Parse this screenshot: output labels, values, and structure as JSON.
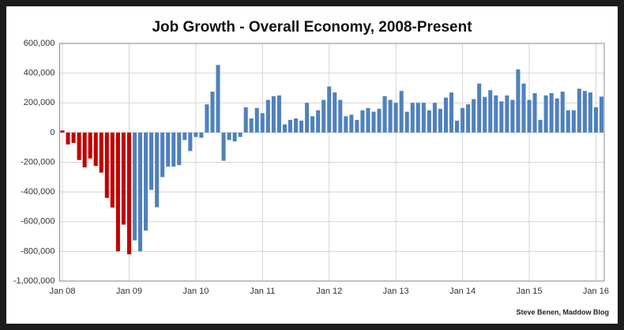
{
  "chart_data": {
    "type": "bar",
    "title": "Job Growth - Overall Economy, 2008-Present",
    "annotation": "Steve Benen, Maddow Blog",
    "categories": [
      "Jan 08",
      null,
      null,
      null,
      null,
      null,
      null,
      null,
      null,
      null,
      null,
      null,
      "Jan 09",
      null,
      null,
      null,
      null,
      null,
      null,
      null,
      null,
      null,
      null,
      null,
      "Jan 10",
      null,
      null,
      null,
      null,
      null,
      null,
      null,
      null,
      null,
      null,
      null,
      "Jan 11",
      null,
      null,
      null,
      null,
      null,
      null,
      null,
      null,
      null,
      null,
      null,
      "Jan 12",
      null,
      null,
      null,
      null,
      null,
      null,
      null,
      null,
      null,
      null,
      null,
      "Jan 13",
      null,
      null,
      null,
      null,
      null,
      null,
      null,
      null,
      null,
      null,
      null,
      "Jan 14",
      null,
      null,
      null,
      null,
      null,
      null,
      null,
      null,
      null,
      null,
      null,
      "Jan 15",
      null,
      null,
      null,
      null,
      null,
      null,
      null,
      null,
      null,
      null,
      null,
      "Jan 16",
      null
    ],
    "values": [
      14000,
      -80000,
      -70000,
      -185000,
      -235000,
      -175000,
      -225000,
      -270000,
      -440000,
      -505000,
      -800000,
      -620000,
      -820000,
      -726000,
      -800000,
      -660000,
      -386000,
      -503000,
      -300000,
      -230000,
      -230000,
      -220000,
      -50000,
      -125000,
      -30000,
      -35000,
      190000,
      275000,
      455000,
      -190000,
      -50000,
      -60000,
      -30000,
      170000,
      95000,
      165000,
      130000,
      220000,
      245000,
      250000,
      55000,
      85000,
      95000,
      80000,
      200000,
      110000,
      150000,
      220000,
      310000,
      270000,
      220000,
      110000,
      120000,
      85000,
      150000,
      165000,
      140000,
      160000,
      245000,
      220000,
      200000,
      280000,
      140000,
      200000,
      200000,
      200000,
      150000,
      200000,
      160000,
      235000,
      270000,
      80000,
      165000,
      190000,
      225000,
      330000,
      240000,
      285000,
      250000,
      210000,
      250000,
      220000,
      425000,
      330000,
      220000,
      265000,
      85000,
      250000,
      265000,
      230000,
      275000,
      150000,
      150000,
      295000,
      280000,
      270000,
      170000,
      242000
    ],
    "colors": [
      "#c00000",
      "#c00000",
      "#c00000",
      "#c00000",
      "#c00000",
      "#c00000",
      "#c00000",
      "#c00000",
      "#c00000",
      "#c00000",
      "#c00000",
      "#c00000",
      "#c00000",
      "#4f81bd",
      "#4f81bd",
      "#4f81bd",
      "#4f81bd",
      "#4f81bd",
      "#4f81bd",
      "#4f81bd",
      "#4f81bd",
      "#4f81bd",
      "#4f81bd",
      "#4f81bd",
      "#4f81bd",
      "#4f81bd",
      "#4f81bd",
      "#4f81bd",
      "#4f81bd",
      "#4f81bd",
      "#4f81bd",
      "#4f81bd",
      "#4f81bd",
      "#4f81bd",
      "#4f81bd",
      "#4f81bd",
      "#4f81bd",
      "#4f81bd",
      "#4f81bd",
      "#4f81bd",
      "#4f81bd",
      "#4f81bd",
      "#4f81bd",
      "#4f81bd",
      "#4f81bd",
      "#4f81bd",
      "#4f81bd",
      "#4f81bd",
      "#4f81bd",
      "#4f81bd",
      "#4f81bd",
      "#4f81bd",
      "#4f81bd",
      "#4f81bd",
      "#4f81bd",
      "#4f81bd",
      "#4f81bd",
      "#4f81bd",
      "#4f81bd",
      "#4f81bd",
      "#4f81bd",
      "#4f81bd",
      "#4f81bd",
      "#4f81bd",
      "#4f81bd",
      "#4f81bd",
      "#4f81bd",
      "#4f81bd",
      "#4f81bd",
      "#4f81bd",
      "#4f81bd",
      "#4f81bd",
      "#4f81bd",
      "#4f81bd",
      "#4f81bd",
      "#4f81bd",
      "#4f81bd",
      "#4f81bd",
      "#4f81bd",
      "#4f81bd",
      "#4f81bd",
      "#4f81bd",
      "#4f81bd",
      "#4f81bd",
      "#4f81bd",
      "#4f81bd",
      "#4f81bd",
      "#4f81bd",
      "#4f81bd",
      "#4f81bd",
      "#4f81bd",
      "#4f81bd",
      "#4f81bd",
      "#4f81bd",
      "#4f81bd",
      "#4f81bd",
      "#4f81bd",
      "#4f81bd"
    ],
    "ylim": [
      -1000000,
      600000
    ],
    "yticks": [
      {
        "value": -1000000,
        "label": "-1,000,000"
      },
      {
        "value": -800000,
        "label": "-800,000"
      },
      {
        "value": -600000,
        "label": "-600,000"
      },
      {
        "value": -400000,
        "label": "-400,000"
      },
      {
        "value": -200000,
        "label": "-200,000"
      },
      0,
      {
        "value": 200000,
        "label": "200,000"
      },
      {
        "value": 400000,
        "label": "400,000"
      },
      {
        "value": 600000,
        "label": "600,000"
      }
    ],
    "grid": true
  }
}
